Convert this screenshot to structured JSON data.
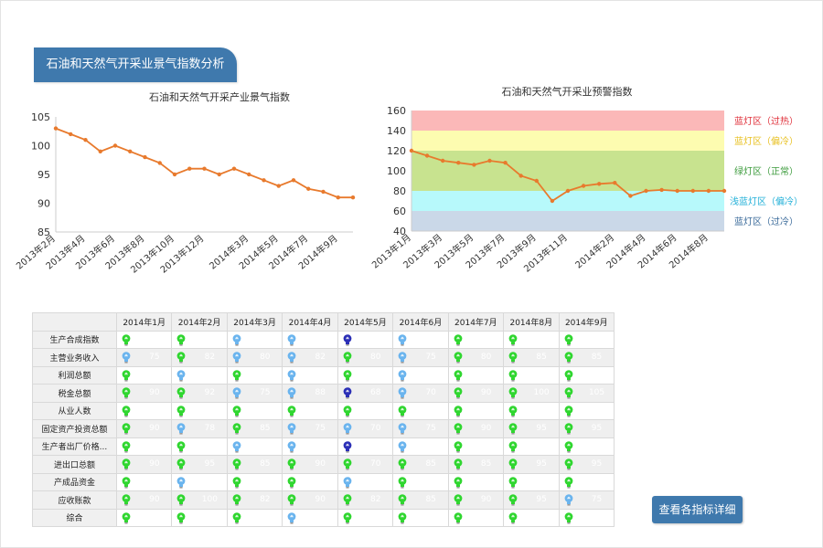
{
  "header": {
    "title": "石油和天然气开采业景气指数分析"
  },
  "chart_data": [
    {
      "type": "line",
      "title": "石油和天然气开采产业景气指数",
      "x": [
        "2013年2月",
        "2013年3月",
        "2013年4月",
        "2013年5月",
        "2013年6月",
        "2013年7月",
        "2013年8月",
        "2013年9月",
        "2013年10月",
        "2013年11月",
        "2013年12月",
        "2014年1月",
        "2014年2月",
        "2014年3月",
        "2014年4月",
        "2014年5月",
        "2014年6月",
        "2014年7月",
        "2014年8月",
        "2014年9月",
        "2014年10月"
      ],
      "tick_labels": [
        "2013年2月",
        "2013年4月",
        "2013年6月",
        "2013年8月",
        "2013年10月",
        "2013年12月",
        "2014年3月",
        "2014年5月",
        "2014年7月",
        "2014年9月"
      ],
      "values": [
        103,
        102,
        101,
        99,
        100,
        99,
        98,
        97,
        95,
        96,
        96,
        95,
        96,
        95,
        94,
        93,
        94,
        92.5,
        92,
        91,
        91
      ],
      "ylim": [
        85,
        105
      ],
      "yticks": [
        85,
        90,
        95,
        100,
        105
      ],
      "color": "#e87a2d",
      "grid": false
    },
    {
      "type": "line",
      "title": "石油和天然气开采业预警指数",
      "x": [
        "2013年1月",
        "2013年2月",
        "2013年3月",
        "2013年4月",
        "2013年5月",
        "2013年6月",
        "2013年7月",
        "2013年8月",
        "2013年9月",
        "2013年10月",
        "2013年11月",
        "2013年12月",
        "2014年1月",
        "2014年2月",
        "2014年3月",
        "2014年4月",
        "2014年5月",
        "2014年6月",
        "2014年7月",
        "2014年8月",
        "2014年9月"
      ],
      "tick_labels": [
        "2013年1月",
        "2013年3月",
        "2013年5月",
        "2013年7月",
        "2013年9月",
        "2013年11月",
        "2014年2月",
        "2014年4月",
        "2014年6月",
        "2014年8月"
      ],
      "values": [
        120,
        115,
        110,
        108,
        106,
        110,
        108,
        95,
        90,
        70,
        80,
        85,
        87,
        88,
        75,
        80,
        81,
        80,
        80,
        80,
        80
      ],
      "ylim": [
        40,
        160
      ],
      "yticks": [
        40,
        60,
        80,
        100,
        120,
        140,
        160
      ],
      "color": "#e87a2d",
      "bands": [
        {
          "from": 140,
          "to": 160,
          "color": "#fbb8b8",
          "label": "蓝灯区（过热）",
          "label_color": "#e0303a"
        },
        {
          "from": 120,
          "to": 140,
          "color": "#fdfcb0",
          "label": "蓝灯区（偏冷）",
          "label_color": "#e8c020"
        },
        {
          "from": 80,
          "to": 120,
          "color": "#c8e38f",
          "label": "绿灯区（正常）",
          "label_color": "#3a9a3a"
        },
        {
          "from": 60,
          "to": 80,
          "color": "#b7f9fb",
          "label": "浅蓝灯区（偏冷）",
          "label_color": "#22b0d8"
        },
        {
          "from": 40,
          "to": 60,
          "color": "#cad8e8",
          "label": "蓝灯区（过冷）",
          "label_color": "#3a6a9a"
        }
      ]
    }
  ],
  "signal_table": {
    "months": [
      "2014年1月",
      "2014年2月",
      "2014年3月",
      "2014年4月",
      "2014年5月",
      "2014年6月",
      "2014年7月",
      "2014年8月",
      "2014年9月"
    ],
    "rows": [
      {
        "label": "生产合成指数",
        "lights": [
          "green",
          "green",
          "lightblue",
          "lightblue",
          "blue",
          "lightblue",
          "green",
          "green",
          "green"
        ],
        "values": [
          "",
          "",
          "",
          "",
          "",
          "",
          "",
          "",
          ""
        ]
      },
      {
        "label": "主营业务收入",
        "lights": [
          "lightblue",
          "green",
          "lightblue",
          "lightblue",
          "green",
          "lightblue",
          "green",
          "green",
          "green"
        ],
        "values": [
          "75",
          "82",
          "80",
          "82",
          "80",
          "75",
          "80",
          "85",
          "85"
        ]
      },
      {
        "label": "利润总额",
        "lights": [
          "green",
          "lightblue",
          "green",
          "lightblue",
          "green",
          "lightblue",
          "green",
          "green",
          "green"
        ],
        "values": [
          "",
          "",
          "",
          "",
          "",
          "",
          "",
          "",
          ""
        ]
      },
      {
        "label": "税金总额",
        "lights": [
          "green",
          "green",
          "lightblue",
          "lightblue",
          "blue",
          "lightblue",
          "green",
          "green",
          "green"
        ],
        "values": [
          "90",
          "92",
          "75",
          "88",
          "68",
          "70",
          "90",
          "100",
          "105"
        ]
      },
      {
        "label": "从业人数",
        "lights": [
          "green",
          "green",
          "green",
          "green",
          "green",
          "green",
          "green",
          "green",
          "green"
        ],
        "values": [
          "",
          "",
          "",
          "",
          "",
          "",
          "",
          "",
          ""
        ]
      },
      {
        "label": "固定资产投资总额",
        "lights": [
          "green",
          "lightblue",
          "green",
          "lightblue",
          "lightblue",
          "lightblue",
          "green",
          "green",
          "green"
        ],
        "values": [
          "90",
          "78",
          "85",
          "75",
          "70",
          "75",
          "90",
          "95",
          "95"
        ]
      },
      {
        "label": "生产者出厂价格...",
        "lights": [
          "green",
          "green",
          "lightblue",
          "lightblue",
          "blue",
          "lightblue",
          "green",
          "green",
          "green"
        ],
        "values": [
          "",
          "",
          "",
          "",
          "",
          "",
          "",
          "",
          ""
        ]
      },
      {
        "label": "进出口总额",
        "lights": [
          "green",
          "green",
          "green",
          "green",
          "green",
          "green",
          "green",
          "green",
          "green"
        ],
        "values": [
          "90",
          "95",
          "85",
          "90",
          "70",
          "85",
          "85",
          "95",
          "95"
        ]
      },
      {
        "label": "产成品资金",
        "lights": [
          "green",
          "lightblue",
          "green",
          "green",
          "lightblue",
          "green",
          "green",
          "green",
          "green"
        ],
        "values": [
          "",
          "",
          "",
          "",
          "",
          "",
          "",
          "",
          ""
        ]
      },
      {
        "label": "应收账款",
        "lights": [
          "green",
          "green",
          "green",
          "green",
          "green",
          "green",
          "green",
          "green",
          "lightblue"
        ],
        "values": [
          "90",
          "100",
          "82",
          "90",
          "82",
          "85",
          "90",
          "95",
          "75"
        ]
      },
      {
        "label": "综合",
        "lights": [
          "green",
          "green",
          "green",
          "lightblue",
          "green",
          "green",
          "green",
          "green",
          "green"
        ],
        "values": [
          "",
          "",
          "",
          "",
          "",
          "",
          "",
          "",
          ""
        ]
      }
    ],
    "light_colors": {
      "green": "#2fd62f",
      "lightblue": "#6ab4ee",
      "blue": "#2b2fb6"
    }
  },
  "actions": {
    "detail_button": "查看各指标详细"
  }
}
